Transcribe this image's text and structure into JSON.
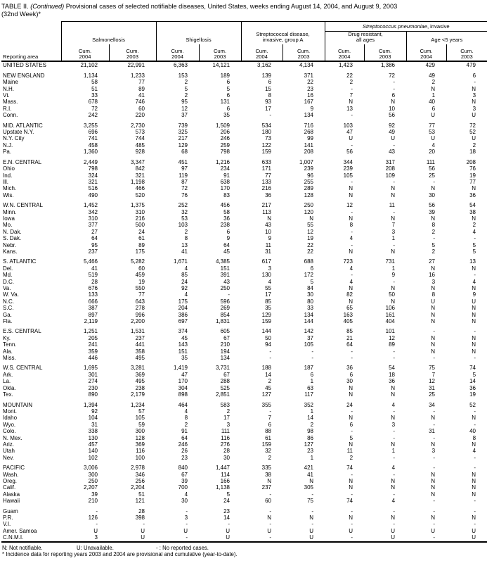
{
  "title": {
    "prefix": "TABLE II.",
    "continued": "(Continued)",
    "rest": " Provisional cases of selected notifiable diseases, United States, weeks ending August 14, 2004, and August 9, 2003",
    "line2": "(32nd Week)*"
  },
  "header": {
    "reporting_area": "Reporting area",
    "pneumoniae": {
      "italic": "Streptococcus pneumoniae",
      "regular": ", invasive"
    },
    "groups": [
      {
        "line1": "Salmonellosis",
        "line2": ""
      },
      {
        "line1": "Shigellosis",
        "line2": ""
      },
      {
        "line1": "Streptococcal disease,",
        "line2": "invasive, group A"
      },
      {
        "line1": "Drug resistant,",
        "line2": "all ages"
      },
      {
        "line1": "Age <5 years",
        "line2": ""
      }
    ],
    "cum_label": "Cum.",
    "years": [
      "2004",
      "2003"
    ]
  },
  "rows": [
    {
      "area": "UNITED STATES",
      "values": [
        "21,102",
        "22,991",
        "6,363",
        "14,121",
        "3,162",
        "4,134",
        "1,423",
        "1,386",
        "429",
        "479"
      ]
    },
    {
      "gap": true,
      "area": "NEW ENGLAND",
      "values": [
        "1,134",
        "1,233",
        "153",
        "189",
        "139",
        "371",
        "22",
        "72",
        "49",
        "6"
      ]
    },
    {
      "area": "Maine",
      "values": [
        "58",
        "77",
        "2",
        "6",
        "6",
        "22",
        "2",
        "-",
        "2",
        "-"
      ]
    },
    {
      "area": "N.H.",
      "values": [
        "51",
        "89",
        "5",
        "5",
        "15",
        "23",
        "-",
        "-",
        "N",
        "N"
      ]
    },
    {
      "area": "Vt.",
      "values": [
        "33",
        "41",
        "2",
        "6",
        "8",
        "16",
        "7",
        "6",
        "1",
        "3"
      ]
    },
    {
      "area": "Mass.",
      "values": [
        "678",
        "746",
        "95",
        "131",
        "93",
        "167",
        "N",
        "N",
        "40",
        "N"
      ]
    },
    {
      "area": "R.I.",
      "values": [
        "72",
        "60",
        "12",
        "6",
        "17",
        "9",
        "13",
        "10",
        "6",
        "3"
      ]
    },
    {
      "area": "Conn.",
      "values": [
        "242",
        "220",
        "37",
        "35",
        "-",
        "134",
        "-",
        "56",
        "U",
        "U"
      ]
    },
    {
      "gap": true,
      "area": "MID. ATLANTIC",
      "values": [
        "3,255",
        "2,730",
        "739",
        "1,509",
        "534",
        "716",
        "103",
        "92",
        "77",
        "72"
      ]
    },
    {
      "area": "Upstate N.Y.",
      "values": [
        "696",
        "573",
        "325",
        "206",
        "180",
        "268",
        "47",
        "49",
        "53",
        "52"
      ]
    },
    {
      "area": "N.Y. City",
      "values": [
        "741",
        "744",
        "217",
        "246",
        "73",
        "99",
        "U",
        "U",
        "U",
        "U"
      ]
    },
    {
      "area": "N.J.",
      "values": [
        "458",
        "485",
        "129",
        "259",
        "122",
        "141",
        "-",
        "-",
        "4",
        "2"
      ]
    },
    {
      "area": "Pa.",
      "values": [
        "1,360",
        "928",
        "68",
        "798",
        "159",
        "208",
        "56",
        "43",
        "20",
        "18"
      ]
    },
    {
      "gap": true,
      "area": "E.N. CENTRAL",
      "values": [
        "2,449",
        "3,347",
        "451",
        "1,216",
        "633",
        "1,007",
        "344",
        "317",
        "111",
        "208"
      ]
    },
    {
      "area": "Ohio",
      "values": [
        "798",
        "842",
        "97",
        "234",
        "171",
        "239",
        "239",
        "208",
        "56",
        "76"
      ]
    },
    {
      "area": "Ind.",
      "values": [
        "324",
        "321",
        "119",
        "91",
        "77",
        "96",
        "105",
        "109",
        "25",
        "19"
      ]
    },
    {
      "area": "Ill.",
      "values": [
        "321",
        "1,198",
        "87",
        "638",
        "133",
        "255",
        "-",
        "-",
        "-",
        "77"
      ]
    },
    {
      "area": "Mich.",
      "values": [
        "516",
        "466",
        "72",
        "170",
        "216",
        "289",
        "N",
        "N",
        "N",
        "N"
      ]
    },
    {
      "area": "Wis.",
      "values": [
        "490",
        "520",
        "76",
        "83",
        "36",
        "128",
        "N",
        "N",
        "30",
        "36"
      ]
    },
    {
      "gap": true,
      "area": "W.N. CENTRAL",
      "values": [
        "1,452",
        "1,375",
        "252",
        "456",
        "217",
        "250",
        "12",
        "11",
        "56",
        "54"
      ]
    },
    {
      "area": "Minn.",
      "values": [
        "342",
        "310",
        "32",
        "58",
        "113",
        "120",
        "-",
        "-",
        "39",
        "38"
      ]
    },
    {
      "area": "Iowa",
      "values": [
        "310",
        "216",
        "53",
        "36",
        "N",
        "N",
        "N",
        "N",
        "N",
        "N"
      ]
    },
    {
      "area": "Mo.",
      "values": [
        "377",
        "500",
        "103",
        "238",
        "43",
        "55",
        "8",
        "7",
        "8",
        "2"
      ]
    },
    {
      "area": "N. Dak.",
      "values": [
        "27",
        "24",
        "2",
        "6",
        "10",
        "12",
        "-",
        "3",
        "2",
        "4"
      ]
    },
    {
      "area": "S. Dak.",
      "values": [
        "64",
        "61",
        "8",
        "9",
        "9",
        "19",
        "4",
        "1",
        "-",
        "-"
      ]
    },
    {
      "area": "Nebr.",
      "values": [
        "95",
        "89",
        "13",
        "64",
        "11",
        "22",
        "-",
        "-",
        "5",
        "5"
      ]
    },
    {
      "area": "Kans.",
      "values": [
        "237",
        "175",
        "41",
        "45",
        "31",
        "22",
        "N",
        "N",
        "2",
        "5"
      ]
    },
    {
      "gap": true,
      "area": "S. ATLANTIC",
      "values": [
        "5,466",
        "5,282",
        "1,671",
        "4,385",
        "617",
        "688",
        "723",
        "731",
        "27",
        "13"
      ]
    },
    {
      "area": "Del.",
      "values": [
        "41",
        "60",
        "4",
        "151",
        "3",
        "6",
        "4",
        "1",
        "N",
        "N"
      ]
    },
    {
      "area": "Md.",
      "values": [
        "519",
        "459",
        "85",
        "391",
        "130",
        "172",
        "-",
        "9",
        "16",
        "-"
      ]
    },
    {
      "area": "D.C.",
      "values": [
        "28",
        "19",
        "24",
        "43",
        "4",
        "5",
        "4",
        "-",
        "3",
        "4"
      ]
    },
    {
      "area": "Va.",
      "values": [
        "676",
        "550",
        "92",
        "250",
        "55",
        "84",
        "N",
        "N",
        "N",
        "N"
      ]
    },
    {
      "area": "W. Va.",
      "values": [
        "133",
        "77",
        "4",
        "-",
        "17",
        "30",
        "82",
        "50",
        "8",
        "9"
      ]
    },
    {
      "area": "N.C.",
      "values": [
        "666",
        "643",
        "175",
        "596",
        "85",
        "80",
        "N",
        "N",
        "U",
        "U"
      ]
    },
    {
      "area": "S.C.",
      "values": [
        "387",
        "278",
        "204",
        "269",
        "35",
        "33",
        "65",
        "106",
        "N",
        "N"
      ]
    },
    {
      "area": "Ga.",
      "values": [
        "897",
        "996",
        "386",
        "854",
        "129",
        "134",
        "163",
        "161",
        "N",
        "N"
      ]
    },
    {
      "area": "Fla.",
      "values": [
        "2,119",
        "2,200",
        "697",
        "1,831",
        "159",
        "144",
        "405",
        "404",
        "N",
        "N"
      ]
    },
    {
      "gap": true,
      "area": "E.S. CENTRAL",
      "values": [
        "1,251",
        "1,531",
        "374",
        "605",
        "144",
        "142",
        "85",
        "101",
        "-",
        "-"
      ]
    },
    {
      "area": "Ky.",
      "values": [
        "205",
        "237",
        "45",
        "67",
        "50",
        "37",
        "21",
        "12",
        "N",
        "N"
      ]
    },
    {
      "area": "Tenn.",
      "values": [
        "241",
        "441",
        "143",
        "210",
        "94",
        "105",
        "64",
        "89",
        "N",
        "N"
      ]
    },
    {
      "area": "Ala.",
      "values": [
        "359",
        "358",
        "151",
        "194",
        "-",
        "-",
        "-",
        "-",
        "N",
        "N"
      ]
    },
    {
      "area": "Miss.",
      "values": [
        "446",
        "495",
        "35",
        "134",
        "-",
        "-",
        "-",
        "-",
        "-",
        "-"
      ]
    },
    {
      "gap": true,
      "area": "W.S. CENTRAL",
      "values": [
        "1,695",
        "3,281",
        "1,419",
        "3,731",
        "188",
        "187",
        "36",
        "54",
        "75",
        "74"
      ]
    },
    {
      "area": "Ark.",
      "values": [
        "301",
        "369",
        "47",
        "67",
        "14",
        "6",
        "6",
        "18",
        "7",
        "5"
      ]
    },
    {
      "area": "La.",
      "values": [
        "274",
        "495",
        "170",
        "288",
        "2",
        "1",
        "30",
        "36",
        "12",
        "14"
      ]
    },
    {
      "area": "Okla.",
      "values": [
        "230",
        "238",
        "304",
        "525",
        "45",
        "63",
        "N",
        "N",
        "31",
        "36"
      ]
    },
    {
      "area": "Tex.",
      "values": [
        "890",
        "2,179",
        "898",
        "2,851",
        "127",
        "117",
        "N",
        "N",
        "25",
        "19"
      ]
    },
    {
      "gap": true,
      "area": "MOUNTAIN",
      "values": [
        "1,394",
        "1,234",
        "464",
        "583",
        "355",
        "352",
        "24",
        "4",
        "34",
        "52"
      ]
    },
    {
      "area": "Mont.",
      "values": [
        "92",
        "57",
        "4",
        "2",
        "-",
        "1",
        "-",
        "-",
        "-",
        "-"
      ]
    },
    {
      "area": "Idaho",
      "values": [
        "104",
        "105",
        "8",
        "17",
        "7",
        "14",
        "N",
        "N",
        "N",
        "N"
      ]
    },
    {
      "area": "Wyo.",
      "values": [
        "31",
        "59",
        "2",
        "3",
        "6",
        "2",
        "6",
        "3",
        "-",
        "-"
      ]
    },
    {
      "area": "Colo.",
      "values": [
        "338",
        "300",
        "91",
        "111",
        "88",
        "98",
        "-",
        "-",
        "31",
        "40"
      ]
    },
    {
      "area": "N. Mex.",
      "values": [
        "130",
        "128",
        "64",
        "116",
        "61",
        "86",
        "5",
        "-",
        "-",
        "8"
      ]
    },
    {
      "area": "Ariz.",
      "values": [
        "457",
        "369",
        "246",
        "276",
        "159",
        "127",
        "N",
        "N",
        "N",
        "N"
      ]
    },
    {
      "area": "Utah",
      "values": [
        "140",
        "116",
        "26",
        "28",
        "32",
        "23",
        "11",
        "1",
        "3",
        "4"
      ]
    },
    {
      "area": "Nev.",
      "values": [
        "102",
        "100",
        "23",
        "30",
        "2",
        "1",
        "2",
        "-",
        "-",
        "-"
      ]
    },
    {
      "gap": true,
      "area": "PACIFIC",
      "values": [
        "3,006",
        "2,978",
        "840",
        "1,447",
        "335",
        "421",
        "74",
        "4",
        "-",
        "-"
      ]
    },
    {
      "area": "Wash.",
      "values": [
        "300",
        "346",
        "67",
        "114",
        "38",
        "41",
        "-",
        "-",
        "N",
        "N"
      ]
    },
    {
      "area": "Oreg.",
      "values": [
        "250",
        "256",
        "39",
        "166",
        "N",
        "N",
        "N",
        "N",
        "N",
        "N"
      ]
    },
    {
      "area": "Calif.",
      "values": [
        "2,207",
        "2,204",
        "700",
        "1,138",
        "237",
        "305",
        "N",
        "N",
        "N",
        "N"
      ]
    },
    {
      "area": "Alaska",
      "values": [
        "39",
        "51",
        "4",
        "5",
        "-",
        "-",
        "-",
        "-",
        "N",
        "N"
      ]
    },
    {
      "area": "Hawaii",
      "values": [
        "210",
        "121",
        "30",
        "24",
        "60",
        "75",
        "74",
        "4",
        "-",
        "-"
      ]
    },
    {
      "gap": true,
      "area": "Guam",
      "values": [
        "-",
        "28",
        "-",
        "23",
        "-",
        "-",
        "-",
        "-",
        "-",
        "-"
      ]
    },
    {
      "area": "P.R.",
      "values": [
        "126",
        "398",
        "3",
        "14",
        "N",
        "N",
        "N",
        "N",
        "N",
        "N"
      ]
    },
    {
      "area": "V.I.",
      "values": [
        "-",
        "-",
        "-",
        "-",
        "-",
        "-",
        "-",
        "-",
        "-",
        "-"
      ]
    },
    {
      "area": "Amer. Samoa",
      "values": [
        "U",
        "U",
        "U",
        "U",
        "U",
        "U",
        "U",
        "U",
        "U",
        "U"
      ]
    },
    {
      "area": "C.N.M.I.",
      "values": [
        "3",
        "U",
        "-",
        "U",
        "-",
        "U",
        "-",
        "U",
        "-",
        "U"
      ]
    }
  ],
  "footnotes": {
    "n": "N: Not notifiable.",
    "u": "U: Unavailable.",
    "dash": "- : No reported cases.",
    "asterisk": "* Incidence data for reporting years 2003 and 2004 are provisional and cumulative (year-to-date)."
  }
}
